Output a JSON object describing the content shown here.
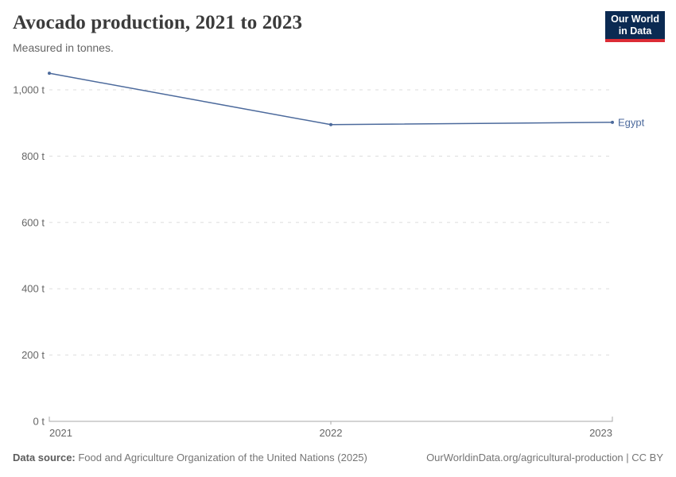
{
  "header": {
    "title": "Avocado production, 2021 to 2023",
    "subtitle": "Measured in tonnes.",
    "logo": {
      "line1": "Our World",
      "line2": "in Data"
    }
  },
  "chart_data": {
    "type": "line",
    "title": "Avocado production, 2021 to 2023",
    "subtitle": "Measured in tonnes.",
    "unit": "tonnes",
    "x": [
      2021,
      2022,
      2023
    ],
    "xtick_labels": [
      "2021",
      "2022",
      "2023"
    ],
    "series": [
      {
        "name": "Egypt",
        "values": [
          1050,
          895,
          902
        ],
        "color": "#4c6a9c"
      }
    ],
    "yticks": [
      {
        "value": 0,
        "label": "0 t"
      },
      {
        "value": 200,
        "label": "200 t"
      },
      {
        "value": 400,
        "label": "400 t"
      },
      {
        "value": 600,
        "label": "600 t"
      },
      {
        "value": 800,
        "label": "800 t"
      },
      {
        "value": 1000,
        "label": "1,000 t"
      }
    ],
    "ylim": [
      0,
      1050
    ],
    "grid": "horizontal-dashed",
    "legend_position": "end-of-line-label"
  },
  "footer": {
    "source_label": "Data source:",
    "source_text": " Food and Agriculture Organization of the United Nations (2025)",
    "link_text": "OurWorldinData.org/agricultural-production | CC BY"
  },
  "colors": {
    "line": "#4c6a9c",
    "series_label": "#4c6a9c",
    "grid": "#dddddd",
    "axis": "#a8a8a8",
    "title": "#3b3b3b",
    "subtitle": "#666666",
    "tick_label": "#666666",
    "footer_text": "#757575",
    "logo_background": "#0b2a52",
    "logo_red": "#dc2c35"
  }
}
